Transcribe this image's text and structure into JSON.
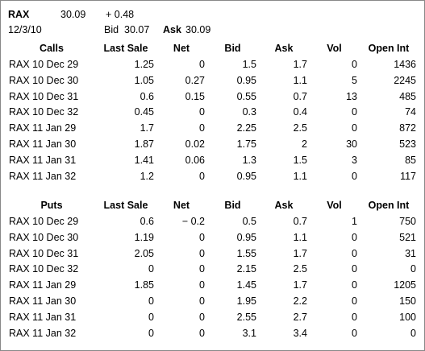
{
  "header": {
    "symbol": "RAX",
    "last": "30.09",
    "change": "+ 0.48",
    "date": "12/3/10",
    "bid_label": "Bid",
    "bid": "30.07",
    "ask_label": "Ask",
    "ask": "30.09"
  },
  "calls": {
    "columns": [
      "Calls",
      "Last Sale",
      "Net",
      "Bid",
      "Ask",
      "Vol",
      "Open Int"
    ],
    "rows": [
      [
        "RAX 10 Dec 29",
        "1.25",
        "0",
        "1.5",
        "1.7",
        "0",
        "1436"
      ],
      [
        "RAX 10 Dec 30",
        "1.05",
        "0.27",
        "0.95",
        "1.1",
        "5",
        "2245"
      ],
      [
        "RAX 10 Dec 31",
        "0.6",
        "0.15",
        "0.55",
        "0.7",
        "13",
        "485"
      ],
      [
        "RAX 10 Dec 32",
        "0.45",
        "0",
        "0.3",
        "0.4",
        "0",
        "74"
      ],
      [
        "RAX 11 Jan 29",
        "1.7",
        "0",
        "2.25",
        "2.5",
        "0",
        "872"
      ],
      [
        "RAX 11 Jan 30",
        "1.87",
        "0.02",
        "1.75",
        "2",
        "30",
        "523"
      ],
      [
        "RAX 11 Jan 31",
        "1.41",
        "0.06",
        "1.3",
        "1.5",
        "3",
        "85"
      ],
      [
        "RAX 11 Jan 32",
        "1.2",
        "0",
        "0.95",
        "1.1",
        "0",
        "117"
      ]
    ]
  },
  "puts": {
    "columns": [
      "Puts",
      "Last Sale",
      "Net",
      "Bid",
      "Ask",
      "Vol",
      "Open Int"
    ],
    "rows": [
      [
        "RAX 10 Dec 29",
        "0.6",
        "− 0.2",
        "0.5",
        "0.7",
        "1",
        "750"
      ],
      [
        "RAX 10 Dec 30",
        "1.19",
        "0",
        "0.95",
        "1.1",
        "0",
        "521"
      ],
      [
        "RAX 10 Dec 31",
        "2.05",
        "0",
        "1.55",
        "1.7",
        "0",
        "31"
      ],
      [
        "RAX 10 Dec 32",
        "0",
        "0",
        "2.15",
        "2.5",
        "0",
        "0"
      ],
      [
        "RAX 11 Jan 29",
        "1.85",
        "0",
        "1.45",
        "1.7",
        "0",
        "1205"
      ],
      [
        "RAX 11 Jan 30",
        "0",
        "0",
        "1.95",
        "2.2",
        "0",
        "150"
      ],
      [
        "RAX 11 Jan 31",
        "0",
        "0",
        "2.55",
        "2.7",
        "0",
        "100"
      ],
      [
        "RAX 11 Jan 32",
        "0",
        "0",
        "3.1",
        "3.4",
        "0",
        "0"
      ]
    ]
  }
}
